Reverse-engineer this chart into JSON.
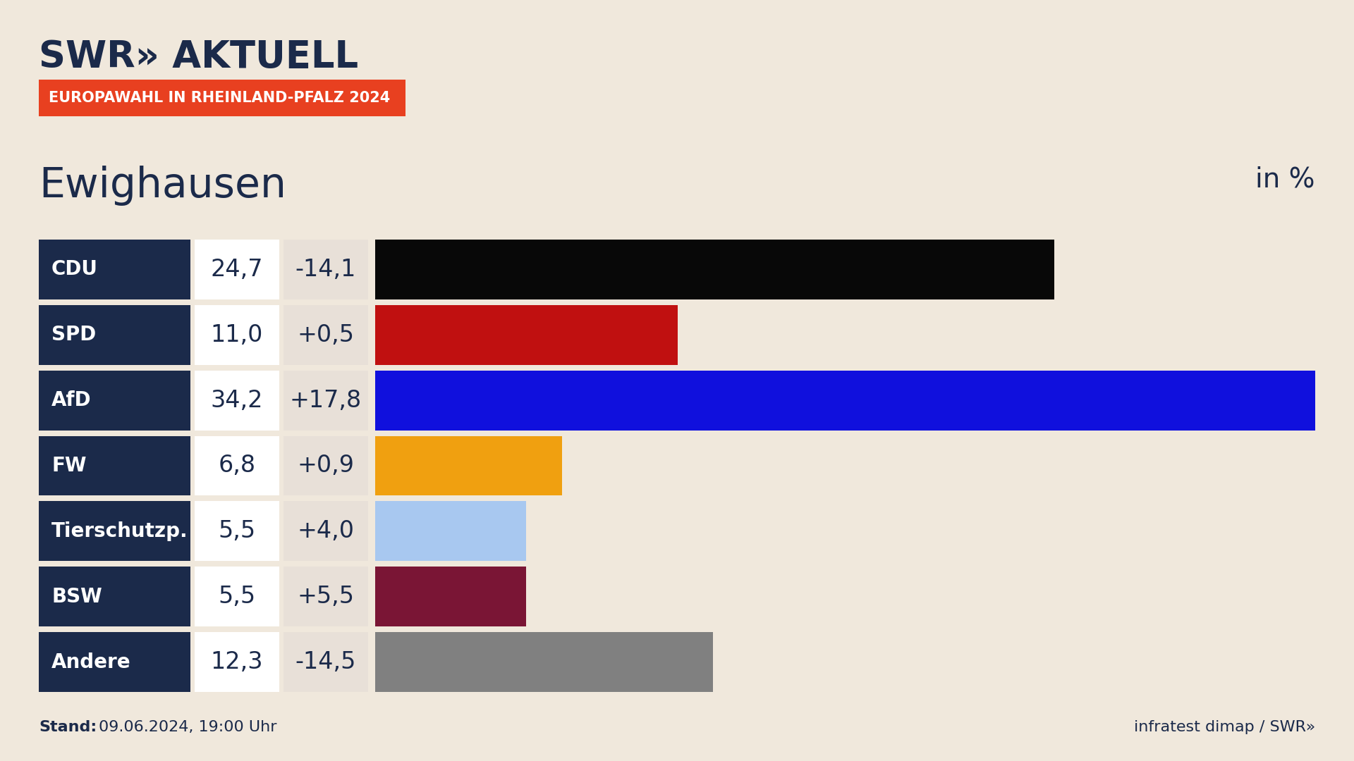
{
  "title_logo": "SWR» AKTUELL",
  "subtitle_badge": "EUROPAWAHL IN RHEINLAND-PFALZ 2024",
  "location": "Ewighausen",
  "unit_label": "in %",
  "stand": "Stand:",
  "stand_date": "09.06.2024, 19:00 Uhr",
  "footer_right": "infratest dimap / SWR»",
  "background_color": "#f0e8dc",
  "label_bg_color": "#1b2a4a",
  "value_bg_color": "#ffffff",
  "change_bg_color": "#e8e0d8",
  "badge_bg_color": "#e84020",
  "parties": [
    "CDU",
    "SPD",
    "AfD",
    "FW",
    "Tierschutzp.",
    "BSW",
    "Andere"
  ],
  "values": [
    24.7,
    11.0,
    34.2,
    6.8,
    5.5,
    5.5,
    12.3
  ],
  "changes": [
    "-14,1",
    "+0,5",
    "+17,8",
    "+0,9",
    "+4,0",
    "+5,5",
    "-14,5"
  ],
  "bar_colors": [
    "#080808",
    "#c01010",
    "#1010dd",
    "#f0a010",
    "#a8c8f0",
    "#7a1535",
    "#808080"
  ],
  "max_value": 34.2
}
